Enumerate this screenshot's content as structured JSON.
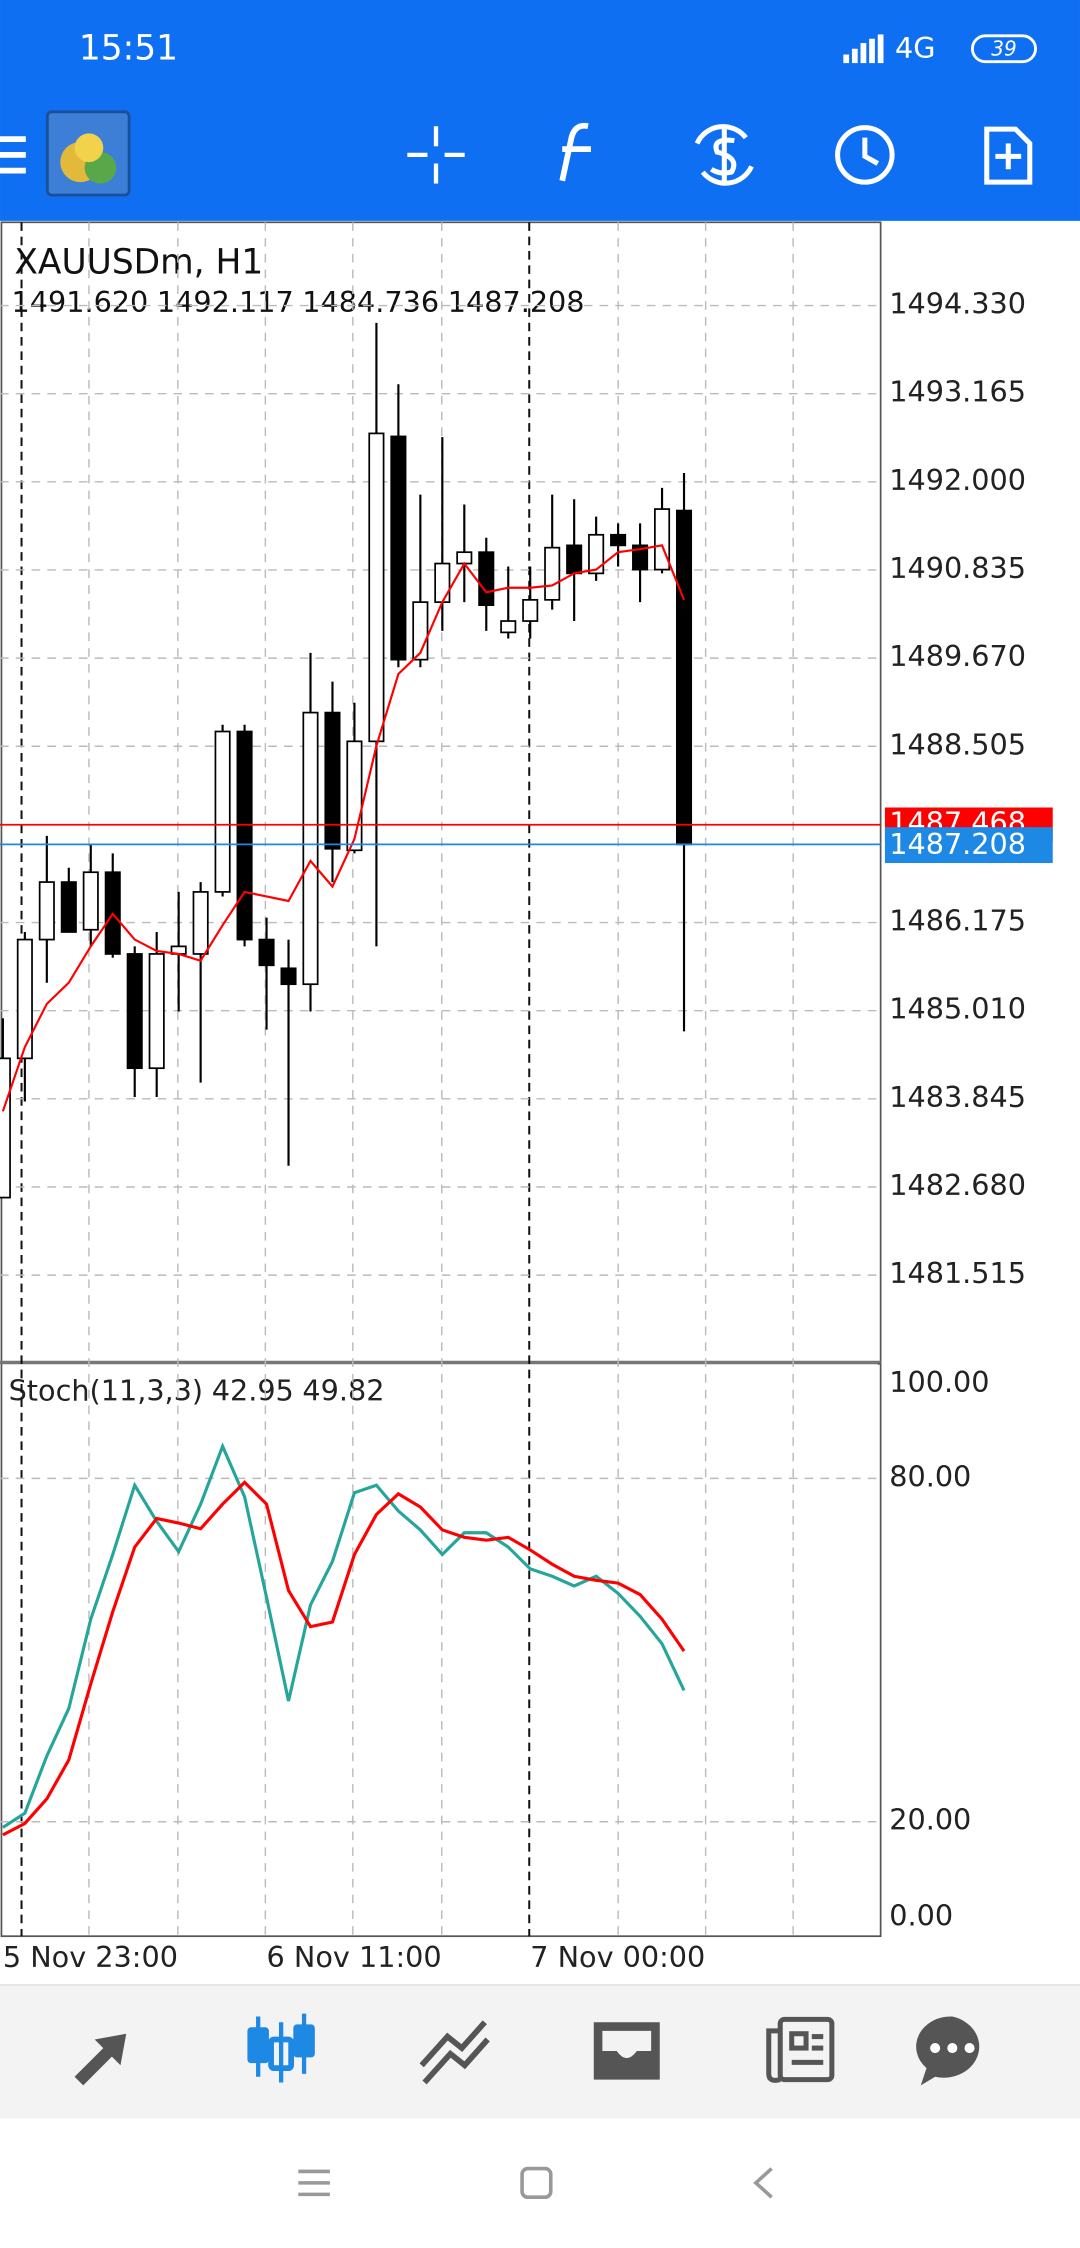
{
  "status_bar": {
    "time": "15:51",
    "network": "4G",
    "battery": "39"
  },
  "chart_data": [
    {
      "type": "candlestick",
      "title": "XAUUSDm, H1",
      "ohlc_labels": [
        "1491.620",
        "1492.117",
        "1484.736",
        "1487.208"
      ],
      "categories": [
        "5 Nov 23:00",
        null,
        null,
        null,
        null,
        null,
        null,
        null,
        null,
        null,
        null,
        null,
        "6 Nov 11:00",
        null,
        null,
        null,
        null,
        null,
        null,
        null,
        null,
        null,
        null,
        null,
        "7 Nov 00:00",
        null,
        null,
        null,
        null,
        null,
        null,
        null
      ],
      "open": [
        1482.54,
        1484.38,
        1485.95,
        1486.71,
        1486.08,
        1486.84,
        1485.76,
        1484.25,
        1485.76,
        1485.76,
        1486.58,
        1488.7,
        1485.95,
        1485.57,
        1485.36,
        1488.95,
        1487.13,
        1488.57,
        1492.6,
        1489.65,
        1490.41,
        1490.92,
        1491.07,
        1490.01,
        1490.16,
        1490.44,
        1491.16,
        1490.79,
        1491.3,
        1491.16,
        1490.84,
        1491.62
      ],
      "high": [
        1484.91,
        1486.05,
        1487.32,
        1486.9,
        1487.22,
        1487.09,
        1485.86,
        1486.05,
        1486.58,
        1486.71,
        1488.79,
        1488.79,
        1486.24,
        1485.95,
        1489.74,
        1489.36,
        1489.08,
        1494.1,
        1493.29,
        1491.83,
        1492.59,
        1491.7,
        1491.26,
        1490.88,
        1490.88,
        1491.83,
        1491.77,
        1491.54,
        1491.45,
        1491.45,
        1491.92,
        1492.117
      ],
      "low": [
        1482.54,
        1483.81,
        1485.38,
        1486.05,
        1485.86,
        1485.71,
        1483.87,
        1483.87,
        1485.0,
        1484.06,
        1486.52,
        1485.86,
        1484.76,
        1482.96,
        1485.0,
        1486.71,
        1487.09,
        1485.86,
        1489.55,
        1489.55,
        1490.03,
        1490.41,
        1490.03,
        1489.93,
        1489.93,
        1490.31,
        1490.16,
        1490.69,
        1490.88,
        1490.41,
        1490.79,
        1484.736
      ],
      "close": [
        1484.38,
        1485.95,
        1486.71,
        1486.05,
        1486.84,
        1485.76,
        1484.25,
        1485.76,
        1485.86,
        1486.58,
        1488.7,
        1485.95,
        1485.61,
        1485.36,
        1488.95,
        1487.15,
        1488.57,
        1492.64,
        1489.65,
        1490.41,
        1490.92,
        1491.07,
        1490.37,
        1490.16,
        1490.44,
        1491.13,
        1490.79,
        1491.3,
        1491.16,
        1490.84,
        1491.64,
        1487.208
      ],
      "up_color": "#ffffff",
      "down_color": "#000000",
      "overlay": {
        "color": "#ff0000",
        "values": [
          1483.68,
          1484.53,
          1485.1,
          1485.38,
          1485.86,
          1486.29,
          1485.95,
          1485.8,
          1485.76,
          1485.67,
          1486.14,
          1486.58,
          1486.52,
          1486.46,
          1486.99,
          1486.65,
          1487.28,
          1488.51,
          1489.46,
          1489.74,
          1490.41,
          1490.92,
          1490.54,
          1490.6,
          1490.6,
          1490.63,
          1490.79,
          1490.84,
          1491.07,
          1491.11,
          1491.16,
          1490.44
        ]
      },
      "ask": {
        "value": 1487.468,
        "label": "1487.468",
        "color": "#ff0000"
      },
      "bid_color": "#1e88e5",
      "ylim": [
        1480.36,
        1495.43
      ],
      "yticks": [
        {
          "value": 1494.33,
          "label": "1494.330"
        },
        {
          "value": 1493.165,
          "label": "1493.165"
        },
        {
          "value": 1492.0,
          "label": "1492.000"
        },
        {
          "value": 1490.835,
          "label": "1490.835"
        },
        {
          "value": 1489.67,
          "label": "1489.670"
        },
        {
          "value": 1488.505,
          "label": "1488.505"
        },
        {
          "value": 1486.175,
          "label": "1486.175"
        },
        {
          "value": 1485.01,
          "label": "1485.010"
        },
        {
          "value": 1483.845,
          "label": "1483.845"
        },
        {
          "value": 1482.68,
          "label": "1482.680"
        },
        {
          "value": 1481.515,
          "label": "1481.515"
        }
      ],
      "grid": true
    },
    {
      "type": "line",
      "title": "Stoch(11,3,3)",
      "series": [
        {
          "color": "#26a69a",
          "values": [
            19.0,
            21.5,
            31.5,
            39.8,
            55.4,
            66.7,
            78.8,
            72.5,
            67.2,
            75.5,
            85.6,
            76.8,
            59.2,
            41.1,
            57.9,
            65.5,
            77.5,
            78.8,
            74.3,
            71.0,
            66.7,
            70.5,
            70.5,
            68.0,
            64.2,
            62.9,
            61.2,
            62.9,
            59.9,
            55.9,
            51.1,
            42.95
          ]
        },
        {
          "color": "#ff0000",
          "values": [
            17.7,
            19.7,
            24.0,
            30.8,
            44.1,
            56.7,
            68.0,
            73.0,
            72.2,
            71.2,
            75.5,
            79.3,
            75.5,
            60.4,
            54.1,
            54.9,
            66.7,
            73.7,
            77.3,
            75.0,
            71.0,
            69.7,
            69.2,
            69.7,
            67.5,
            65.0,
            62.9,
            62.2,
            61.7,
            59.7,
            55.4,
            49.82
          ]
        }
      ],
      "ylim": [
        0,
        100
      ],
      "yticks": [
        {
          "value": 100,
          "label": "100.00"
        },
        {
          "value": 80,
          "label": "80.00"
        },
        {
          "value": 20,
          "label": "20.00"
        },
        {
          "value": 0,
          "label": "0.00"
        }
      ],
      "grid": true
    }
  ]
}
